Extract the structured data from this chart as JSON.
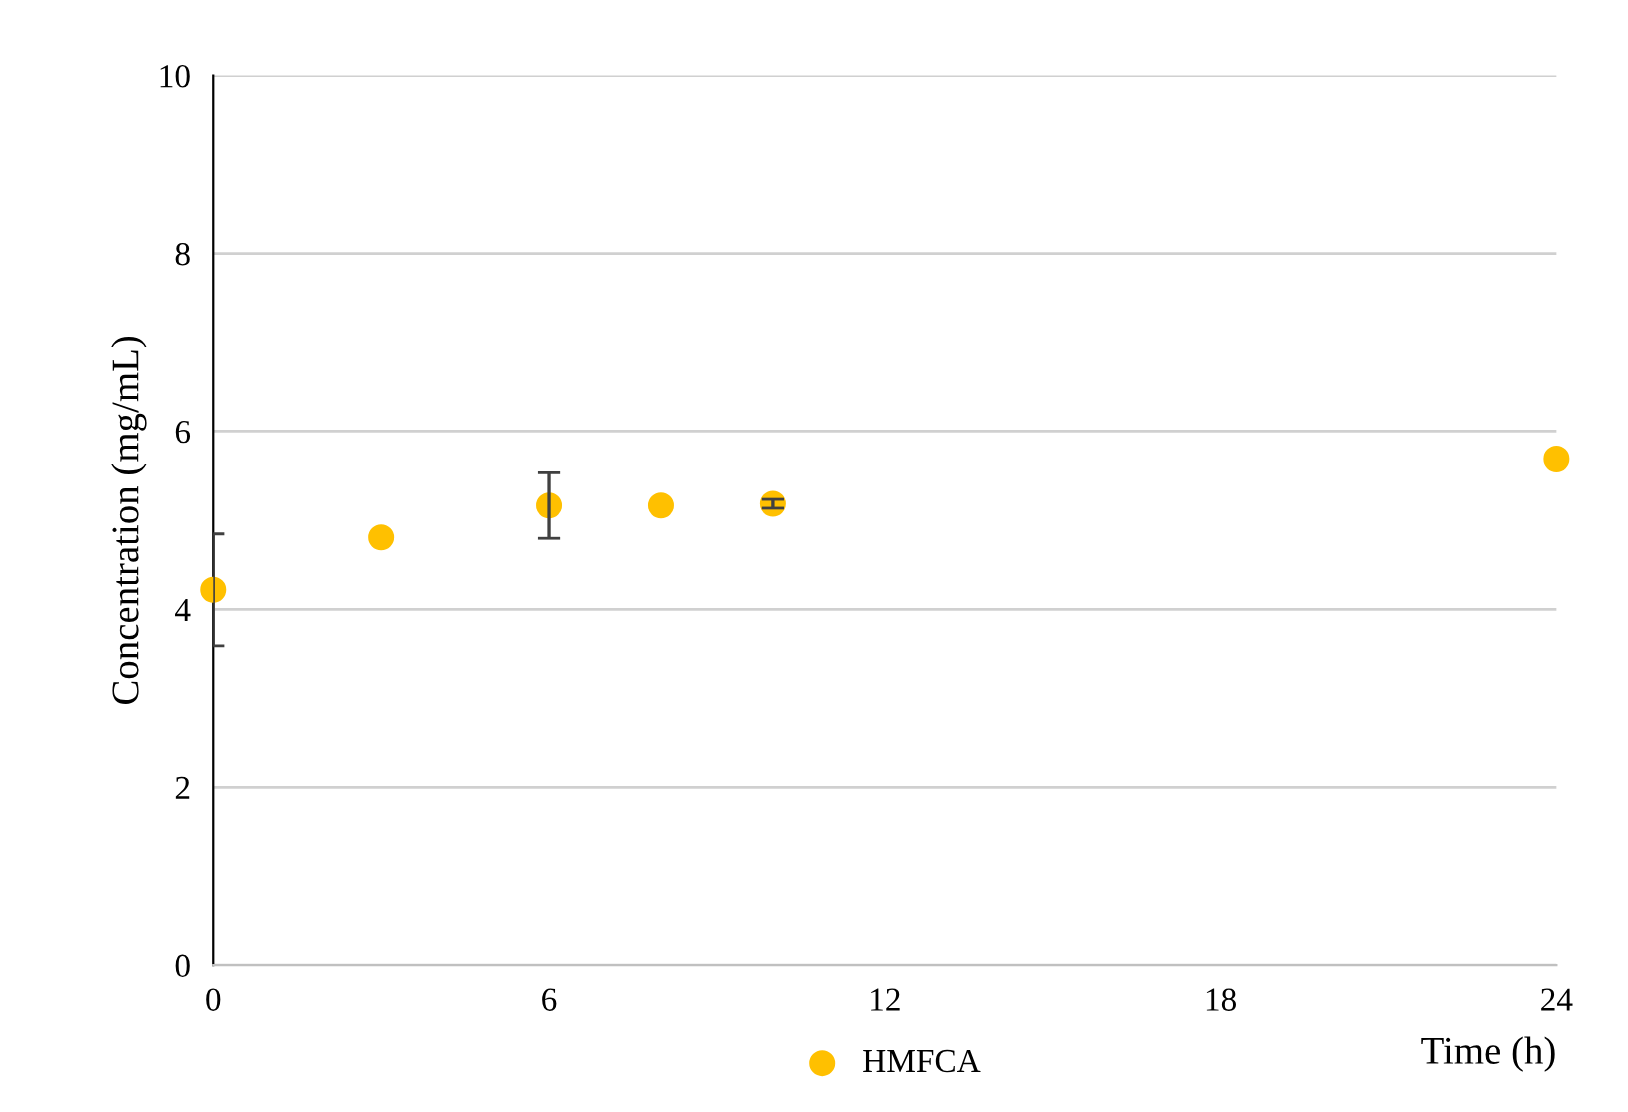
{
  "chart_data": {
    "type": "scatter",
    "xlabel": "Time (h)",
    "ylabel": "Concentration (mg/mL)",
    "x": [
      0,
      3,
      6,
      8,
      10,
      24
    ],
    "series": [
      {
        "name": "HMFCA",
        "color": "#ffc000",
        "values": [
          4.22,
          4.81,
          5.17,
          5.17,
          5.19,
          5.69
        ],
        "errors": [
          0.63,
          null,
          0.37,
          null,
          0.05,
          null
        ]
      }
    ],
    "xlim": [
      0,
      24
    ],
    "xticks": [
      0,
      6,
      12,
      18,
      24
    ],
    "ylim": [
      0,
      10
    ],
    "yticks": [
      0,
      2,
      4,
      6,
      8,
      10
    ],
    "grid": "y",
    "legend": "bottom",
    "marker": "circle"
  }
}
